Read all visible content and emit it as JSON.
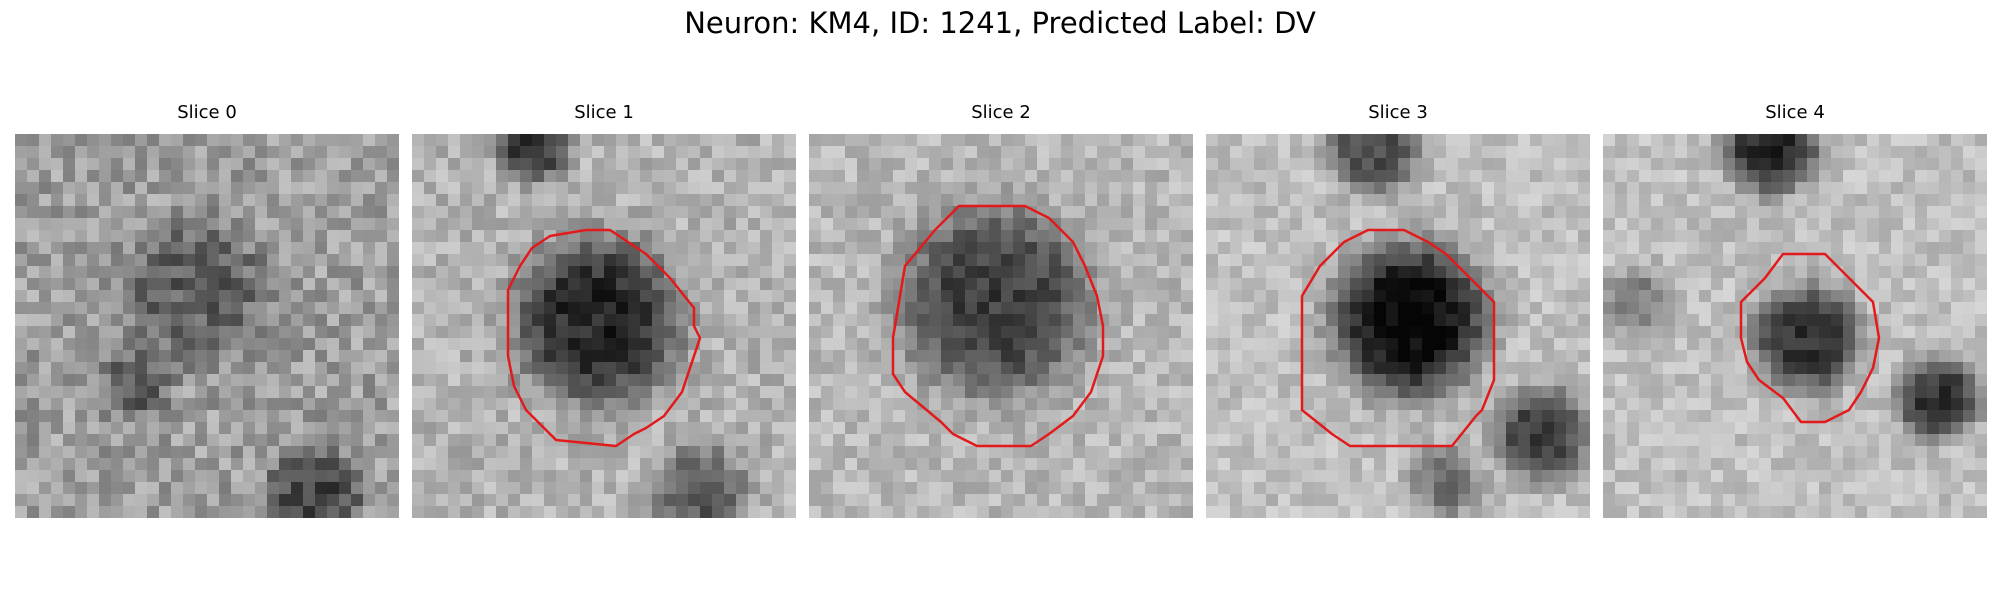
{
  "figure": {
    "title": "Neuron: KM4, ID: 1241, Predicted Label: DV"
  },
  "panels": [
    {
      "title": "Slice 0",
      "has_contour": false
    },
    {
      "title": "Slice 1",
      "has_contour": true
    },
    {
      "title": "Slice 2",
      "has_contour": true
    },
    {
      "title": "Slice 3",
      "has_contour": true
    },
    {
      "title": "Slice 4",
      "has_contour": true
    }
  ],
  "colors": {
    "contour": "#e31a1c",
    "background": "#ffffff",
    "colormap": "gray"
  }
}
